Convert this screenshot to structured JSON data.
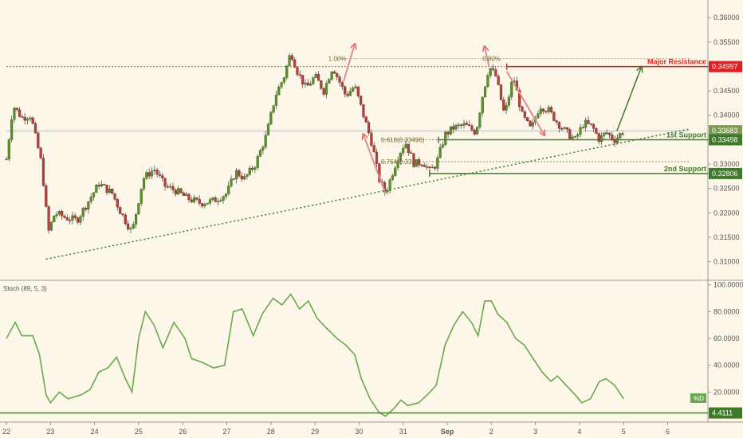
{
  "chart_data": [
    {
      "type": "candlestick",
      "x_ticks": [
        "22",
        "23",
        "24",
        "25",
        "26",
        "27",
        "28",
        "29",
        "30",
        "31",
        "Sep",
        "2",
        "3",
        "4",
        "5",
        "6"
      ],
      "y_ticks": [
        "0.36000",
        "0.35500",
        "0.35000",
        "0.34500",
        "0.34000",
        "0.33500",
        "0.33000",
        "0.32500",
        "0.32000",
        "0.31500",
        "0.31000"
      ],
      "ylim": [
        0.3083,
        0.3615
      ],
      "price_series": [
        {
          "x": 0.0,
          "y": 0.331
        },
        {
          "x": 0.15,
          "y": 0.342
        },
        {
          "x": 0.35,
          "y": 0.3395
        },
        {
          "x": 0.55,
          "y": 0.34
        },
        {
          "x": 0.8,
          "y": 0.33
        },
        {
          "x": 0.95,
          "y": 0.316
        },
        {
          "x": 1.1,
          "y": 0.32
        },
        {
          "x": 1.35,
          "y": 0.319
        },
        {
          "x": 1.6,
          "y": 0.3185
        },
        {
          "x": 1.9,
          "y": 0.323
        },
        {
          "x": 2.1,
          "y": 0.326
        },
        {
          "x": 2.4,
          "y": 0.324
        },
        {
          "x": 2.6,
          "y": 0.32
        },
        {
          "x": 2.85,
          "y": 0.316
        },
        {
          "x": 3.1,
          "y": 0.327
        },
        {
          "x": 3.35,
          "y": 0.329
        },
        {
          "x": 3.6,
          "y": 0.3255
        },
        {
          "x": 3.85,
          "y": 0.3245
        },
        {
          "x": 4.1,
          "y": 0.323
        },
        {
          "x": 4.4,
          "y": 0.322
        },
        {
          "x": 4.7,
          "y": 0.3225
        },
        {
          "x": 5.0,
          "y": 0.324
        },
        {
          "x": 5.2,
          "y": 0.3285
        },
        {
          "x": 5.4,
          "y": 0.327
        },
        {
          "x": 5.65,
          "y": 0.33
        },
        {
          "x": 5.9,
          "y": 0.336
        },
        {
          "x": 6.1,
          "y": 0.344
        },
        {
          "x": 6.3,
          "y": 0.348
        },
        {
          "x": 6.45,
          "y": 0.353
        },
        {
          "x": 6.6,
          "y": 0.349
        },
        {
          "x": 6.8,
          "y": 0.3455
        },
        {
          "x": 7.0,
          "y": 0.348
        },
        {
          "x": 7.2,
          "y": 0.345
        },
        {
          "x": 7.4,
          "y": 0.35
        },
        {
          "x": 7.55,
          "y": 0.347
        },
        {
          "x": 7.7,
          "y": 0.344
        },
        {
          "x": 7.9,
          "y": 0.346
        },
        {
          "x": 8.1,
          "y": 0.34
        },
        {
          "x": 8.3,
          "y": 0.334
        },
        {
          "x": 8.45,
          "y": 0.327
        },
        {
          "x": 8.6,
          "y": 0.324
        },
        {
          "x": 8.75,
          "y": 0.328
        },
        {
          "x": 8.9,
          "y": 0.332
        },
        {
          "x": 9.05,
          "y": 0.3345
        },
        {
          "x": 9.25,
          "y": 0.33
        },
        {
          "x": 9.45,
          "y": 0.3305
        },
        {
          "x": 9.6,
          "y": 0.3285
        },
        {
          "x": 9.75,
          "y": 0.33
        },
        {
          "x": 9.95,
          "y": 0.336
        },
        {
          "x": 10.15,
          "y": 0.3375
        },
        {
          "x": 10.4,
          "y": 0.338
        },
        {
          "x": 10.65,
          "y": 0.3365
        },
        {
          "x": 10.8,
          "y": 0.344
        },
        {
          "x": 10.95,
          "y": 0.35
        },
        {
          "x": 11.1,
          "y": 0.348
        },
        {
          "x": 11.3,
          "y": 0.34
        },
        {
          "x": 11.5,
          "y": 0.348
        },
        {
          "x": 11.7,
          "y": 0.34
        },
        {
          "x": 11.9,
          "y": 0.337
        },
        {
          "x": 12.1,
          "y": 0.342
        },
        {
          "x": 12.3,
          "y": 0.341
        },
        {
          "x": 12.5,
          "y": 0.3385
        },
        {
          "x": 12.7,
          "y": 0.3365
        },
        {
          "x": 12.9,
          "y": 0.335
        },
        {
          "x": 13.1,
          "y": 0.3385
        },
        {
          "x": 13.3,
          "y": 0.3375
        },
        {
          "x": 13.45,
          "y": 0.335
        },
        {
          "x": 13.6,
          "y": 0.3365
        },
        {
          "x": 13.8,
          "y": 0.335
        },
        {
          "x": 14.0,
          "y": 0.3368
        }
      ],
      "price_labels": [
        {
          "text": "0.34997",
          "value": 0.34997,
          "color": "#e02020"
        },
        {
          "text": "0.33683",
          "value": 0.33683,
          "color": "#7a9a55"
        },
        {
          "text": "0.33498",
          "value": 0.33498,
          "color": "#3e7a2a"
        },
        {
          "text": "0.32806",
          "value": 0.32806,
          "color": "#3e7a2a"
        }
      ],
      "levels": [
        {
          "name": "Major Resistance",
          "value": 0.34997,
          "color": "#e02020",
          "x_start": 11.35,
          "x_end": 15.5
        },
        {
          "name": "1st Support",
          "value": 0.33498,
          "color": "#3e7a2a",
          "x_start": 9.8,
          "x_end": 15.5
        },
        {
          "name": "2nd Support",
          "value": 0.32806,
          "color": "#3e7a2a",
          "x_start": 9.6,
          "x_end": 15.5
        }
      ],
      "horizontal_lines": [
        {
          "value": 0.34997,
          "style": "dotted",
          "color": "#e05050",
          "x_start": 0,
          "x_end": 11.3
        },
        {
          "value": 0.3516,
          "style": "dotted",
          "color": "#c8b040",
          "x_start": 7.5,
          "x_end": 15.5
        },
        {
          "value": 0.3368,
          "style": "solid",
          "color": "#bbbbbb",
          "x_start": 0,
          "x_end": 15.5
        },
        {
          "value": 0.33498,
          "style": "dotted",
          "color": "#8a9a2a",
          "x_start": 8.5,
          "x_end": 9.8
        },
        {
          "value": 0.3305,
          "style": "dotted",
          "color": "#8a8a5a",
          "x_start": 8.5,
          "x_end": 15.5
        }
      ],
      "fib_labels": [
        {
          "text": "0.618(0.33498)",
          "x": 8.5,
          "y": 0.33498
        },
        {
          "text": "0.764(0.33...)",
          "x": 8.5,
          "y": 0.3305
        },
        {
          "text": "1.00%",
          "x": 7.3,
          "y": 0.3516
        },
        {
          "text": "0.80%",
          "x": 10.8,
          "y": 0.3516
        }
      ],
      "trendline": {
        "x1": 0.9,
        "y1": 0.3105,
        "x2": 15.5,
        "y2": 0.3372
      },
      "projection_arrow": {
        "x1": 13.85,
        "y1": 0.3368,
        "x2": 14.4,
        "y2": 0.3498
      },
      "annotation_arrows": [
        {
          "x1": 8.6,
          "y1": 0.324,
          "x2": 8.1,
          "y2": 0.336
        },
        {
          "x1": 7.65,
          "y1": 0.347,
          "x2": 7.9,
          "y2": 0.3545
        },
        {
          "x1": 10.95,
          "y1": 0.35,
          "x2": 10.85,
          "y2": 0.354
        },
        {
          "x1": 11.35,
          "y1": 0.349,
          "x2": 12.2,
          "y2": 0.336
        }
      ]
    },
    {
      "type": "line",
      "title": "Stoch (89, 5, 3)",
      "y_ticks": [
        "100.0000",
        "80.0000",
        "60.0000",
        "40.0000",
        "20.0000"
      ],
      "ylim": [
        0,
        101
      ],
      "series": [
        {
          "name": "%D",
          "color": "#6aa84f",
          "points": [
            {
              "x": 0.0,
              "y": 60
            },
            {
              "x": 0.2,
              "y": 72
            },
            {
              "x": 0.35,
              "y": 62
            },
            {
              "x": 0.6,
              "y": 62
            },
            {
              "x": 0.75,
              "y": 48
            },
            {
              "x": 0.9,
              "y": 18
            },
            {
              "x": 1.0,
              "y": 12
            },
            {
              "x": 1.2,
              "y": 20
            },
            {
              "x": 1.4,
              "y": 15
            },
            {
              "x": 1.7,
              "y": 18
            },
            {
              "x": 1.9,
              "y": 22
            },
            {
              "x": 2.1,
              "y": 35
            },
            {
              "x": 2.3,
              "y": 38
            },
            {
              "x": 2.5,
              "y": 46
            },
            {
              "x": 2.7,
              "y": 30
            },
            {
              "x": 2.85,
              "y": 20
            },
            {
              "x": 3.0,
              "y": 60
            },
            {
              "x": 3.15,
              "y": 80
            },
            {
              "x": 3.35,
              "y": 70
            },
            {
              "x": 3.55,
              "y": 53
            },
            {
              "x": 3.8,
              "y": 72
            },
            {
              "x": 4.05,
              "y": 60
            },
            {
              "x": 4.2,
              "y": 45
            },
            {
              "x": 4.45,
              "y": 42
            },
            {
              "x": 4.7,
              "y": 38
            },
            {
              "x": 4.95,
              "y": 40
            },
            {
              "x": 5.15,
              "y": 80
            },
            {
              "x": 5.35,
              "y": 82
            },
            {
              "x": 5.6,
              "y": 62
            },
            {
              "x": 5.8,
              "y": 78
            },
            {
              "x": 6.05,
              "y": 90
            },
            {
              "x": 6.25,
              "y": 85
            },
            {
              "x": 6.45,
              "y": 93
            },
            {
              "x": 6.65,
              "y": 82
            },
            {
              "x": 6.85,
              "y": 88
            },
            {
              "x": 7.05,
              "y": 75
            },
            {
              "x": 7.25,
              "y": 68
            },
            {
              "x": 7.5,
              "y": 60
            },
            {
              "x": 7.7,
              "y": 55
            },
            {
              "x": 7.9,
              "y": 48
            },
            {
              "x": 8.05,
              "y": 30
            },
            {
              "x": 8.25,
              "y": 15
            },
            {
              "x": 8.45,
              "y": 5
            },
            {
              "x": 8.6,
              "y": 2
            },
            {
              "x": 8.8,
              "y": 8
            },
            {
              "x": 8.95,
              "y": 14
            },
            {
              "x": 9.1,
              "y": 10
            },
            {
              "x": 9.35,
              "y": 12
            },
            {
              "x": 9.55,
              "y": 18
            },
            {
              "x": 9.75,
              "y": 25
            },
            {
              "x": 9.95,
              "y": 55
            },
            {
              "x": 10.15,
              "y": 70
            },
            {
              "x": 10.35,
              "y": 80
            },
            {
              "x": 10.55,
              "y": 72
            },
            {
              "x": 10.7,
              "y": 62
            },
            {
              "x": 10.85,
              "y": 88
            },
            {
              "x": 11.0,
              "y": 88
            },
            {
              "x": 11.15,
              "y": 78
            },
            {
              "x": 11.35,
              "y": 72
            },
            {
              "x": 11.55,
              "y": 60
            },
            {
              "x": 11.75,
              "y": 55
            },
            {
              "x": 11.95,
              "y": 45
            },
            {
              "x": 12.15,
              "y": 35
            },
            {
              "x": 12.35,
              "y": 28
            },
            {
              "x": 12.5,
              "y": 32
            },
            {
              "x": 12.7,
              "y": 25
            },
            {
              "x": 12.9,
              "y": 18
            },
            {
              "x": 13.05,
              "y": 12
            },
            {
              "x": 13.25,
              "y": 15
            },
            {
              "x": 13.45,
              "y": 28
            },
            {
              "x": 13.6,
              "y": 30
            },
            {
              "x": 13.8,
              "y": 25
            },
            {
              "x": 14.0,
              "y": 15
            }
          ]
        }
      ],
      "baseline": {
        "text": "4.4111",
        "value": 4.4111,
        "color": "#3e7a2a"
      },
      "legend_badge": "%D"
    }
  ]
}
